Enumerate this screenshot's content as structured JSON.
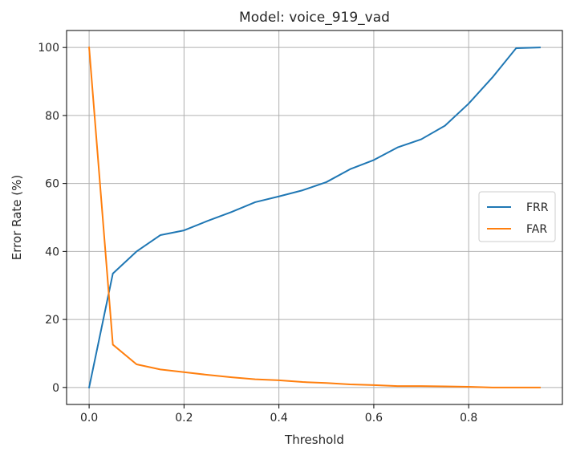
{
  "chart_data": {
    "type": "line",
    "title": "Model: voice_919_vad",
    "xlabel": "Threshold",
    "ylabel": "Error Rate (%)",
    "xlim": [
      -0.0475,
      0.9975
    ],
    "ylim": [
      -5,
      105
    ],
    "xticks": [
      0.0,
      0.2,
      0.4,
      0.6,
      0.8
    ],
    "xtick_labels": [
      "0.0",
      "0.2",
      "0.4",
      "0.6",
      "0.8"
    ],
    "yticks": [
      0,
      20,
      40,
      60,
      80,
      100
    ],
    "ytick_labels": [
      "0",
      "20",
      "40",
      "60",
      "80",
      "100"
    ],
    "grid": true,
    "legend_position": "center-right",
    "x": [
      0.0,
      0.05,
      0.1,
      0.15,
      0.2,
      0.25,
      0.3,
      0.35,
      0.4,
      0.45,
      0.5,
      0.55,
      0.6,
      0.65,
      0.7,
      0.75,
      0.8,
      0.85,
      0.9,
      0.95
    ],
    "series": [
      {
        "name": "FRR",
        "color": "#1f77b4",
        "values": [
          0.0,
          33.5,
          40.0,
          44.8,
          46.2,
          49.0,
          51.6,
          54.5,
          56.2,
          58.0,
          60.4,
          64.2,
          66.9,
          70.6,
          73.0,
          77.0,
          83.5,
          91.2,
          99.8,
          100.0
        ]
      },
      {
        "name": "FAR",
        "color": "#ff7f0e",
        "values": [
          100.0,
          12.6,
          6.8,
          5.3,
          4.5,
          3.7,
          3.0,
          2.4,
          2.1,
          1.6,
          1.3,
          0.9,
          0.7,
          0.4,
          0.4,
          0.3,
          0.2,
          0.0,
          0.0,
          0.0
        ]
      }
    ]
  }
}
